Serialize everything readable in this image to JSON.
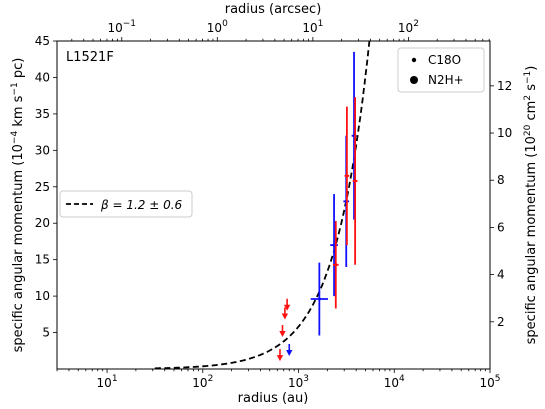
{
  "chart_data": {
    "type": "scatter",
    "panel_label": "L1521F",
    "xlabel_bottom": "radius (au)",
    "xlabel_top": "radius (arcsec)",
    "ylabel_left": "specific angular momentum (10",
    "ylabel_left_exp1": "−4",
    "ylabel_left_mid": " km s",
    "ylabel_left_exp2": "−1",
    "ylabel_left_end": " pc)",
    "ylabel_right": "specific angular momentum (10",
    "ylabel_right_exp1": "20",
    "ylabel_right_mid": " cm",
    "ylabel_right_exp2": "2",
    "ylabel_right_mid2": " s",
    "ylabel_right_exp3": "−1",
    "ylabel_right_end": ")",
    "x_scale": "log",
    "xlim": [
      3,
      100000
    ],
    "ylim": [
      0,
      45
    ],
    "top_xlim_arcsec": [
      0.021,
      714
    ],
    "right_ylim": [
      0,
      13.9
    ],
    "x_ticks_bottom": [
      {
        "value": 10,
        "base": "10",
        "exp": "1"
      },
      {
        "value": 100,
        "base": "10",
        "exp": "2"
      },
      {
        "value": 1000,
        "base": "10",
        "exp": "3"
      },
      {
        "value": 10000,
        "base": "10",
        "exp": "4"
      },
      {
        "value": 100000,
        "base": "10",
        "exp": "5"
      }
    ],
    "x_ticks_top": [
      {
        "value": 0.1,
        "base": "10",
        "exp": "−1"
      },
      {
        "value": 1,
        "base": "10",
        "exp": "0"
      },
      {
        "value": 10,
        "base": "10",
        "exp": "1"
      },
      {
        "value": 100,
        "base": "10",
        "exp": "2"
      }
    ],
    "y_ticks_left": [
      5,
      10,
      15,
      20,
      25,
      30,
      35,
      40,
      45
    ],
    "y_ticks_right": [
      2,
      4,
      6,
      8,
      10,
      12
    ],
    "legend_top_right": [
      {
        "label": "C18O",
        "marker": "small-dot"
      },
      {
        "label": "N2H+",
        "marker": "large-dot"
      }
    ],
    "legend_left": {
      "label": "β = 1.2 ± 0.6",
      "style": "dashed"
    },
    "model_fit": {
      "beta": 1.2,
      "beta_err": 0.6,
      "amplitude_at_1000au": 5.82
    },
    "series": [
      {
        "color": "#1010ff",
        "points": [
          {
            "x": 1650,
            "y": 9.6,
            "yerr": 5.0,
            "xerr_dex": 0.09
          },
          {
            "x": 2350,
            "y": 17.0,
            "yerr": 7.0,
            "xerr_dex": 0.04
          },
          {
            "x": 3150,
            "y": 23.0,
            "yerr": 9.0,
            "xerr_dex": 0.03
          },
          {
            "x": 3800,
            "y": 32.0,
            "yerr": 11.5,
            "xerr_dex": 0.025
          }
        ],
        "upper_limits": [
          {
            "x": 800,
            "y": 2.2
          }
        ]
      },
      {
        "color": "#ff1010",
        "points": [
          {
            "x": 2450,
            "y": 14.3,
            "yerr": 6.0,
            "xerr_dex": 0.03
          },
          {
            "x": 3200,
            "y": 26.5,
            "yerr": 9.5,
            "xerr_dex": 0.025
          },
          {
            "x": 3900,
            "y": 25.8,
            "yerr": 11.5,
            "xerr_dex": 0.025
          }
        ],
        "upper_limits": [
          {
            "x": 640,
            "y": 1.5
          },
          {
            "x": 680,
            "y": 4.8
          },
          {
            "x": 720,
            "y": 7.2
          },
          {
            "x": 760,
            "y": 8.4
          }
        ]
      }
    ]
  }
}
